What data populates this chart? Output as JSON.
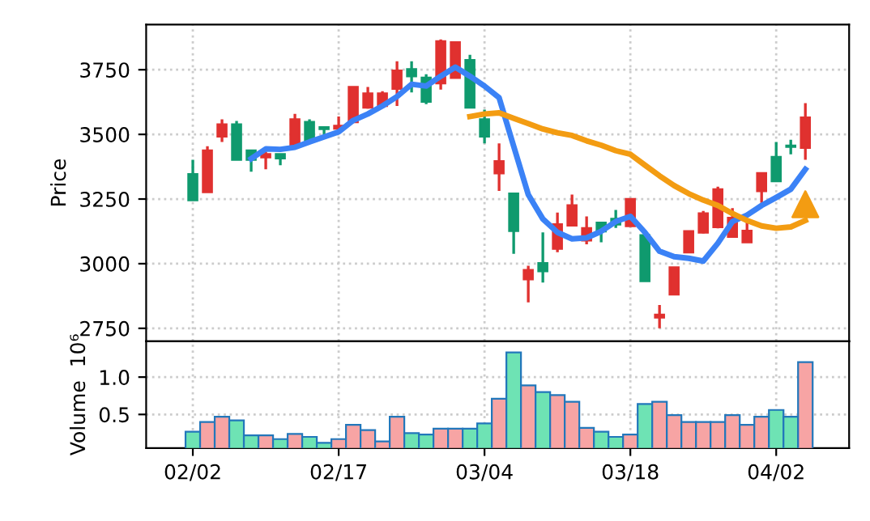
{
  "chart_data": [
    {
      "type": "candlestick",
      "ylabel": "Price",
      "categories": [
        null,
        null,
        null,
        null,
        null,
        null,
        null,
        null,
        null,
        null,
        null,
        null,
        null,
        null,
        null,
        null,
        null,
        null,
        null,
        null,
        null,
        null,
        null,
        null,
        null,
        null,
        null,
        null,
        null,
        null,
        null,
        null,
        null,
        null,
        null,
        null,
        null,
        null,
        null,
        null,
        null,
        null,
        null
      ],
      "ohlc": [
        [
          3346,
          3402,
          3245,
          3246
        ],
        [
          3277,
          3454,
          3277,
          3437
        ],
        [
          3492,
          3558,
          3471,
          3538
        ],
        [
          3538,
          3552,
          3402,
          3402
        ],
        [
          3437,
          3437,
          3356,
          3402
        ],
        [
          3412,
          3433,
          3365,
          3423
        ],
        [
          3423,
          3423,
          3381,
          3408
        ],
        [
          3458,
          3579,
          3458,
          3558
        ],
        [
          3548,
          3558,
          3475,
          3475
        ],
        [
          3527,
          3527,
          3492,
          3521
        ],
        [
          3523,
          3569,
          3517,
          3533
        ],
        [
          3548,
          3683,
          3548,
          3683
        ],
        [
          3604,
          3683,
          3600,
          3658
        ],
        [
          3610,
          3667,
          3604,
          3658
        ],
        [
          3677,
          3783,
          3610,
          3746
        ],
        [
          3752,
          3783,
          3662,
          3725
        ],
        [
          3719,
          3733,
          3617,
          3627
        ],
        [
          3698,
          3867,
          3673,
          3860
        ],
        [
          3719,
          3860,
          3719,
          3856
        ],
        [
          3787,
          3808,
          3604,
          3604
        ],
        [
          3558,
          3596,
          3465,
          3492
        ],
        [
          3350,
          3465,
          3281,
          3396
        ],
        [
          3271,
          3271,
          3038,
          3127
        ],
        [
          2940,
          2992,
          2850,
          2975
        ],
        [
          3002,
          3121,
          2927,
          2971
        ],
        [
          3058,
          3198,
          3044,
          3152
        ],
        [
          3148,
          3267,
          3148,
          3225
        ],
        [
          3090,
          3183,
          3075,
          3137
        ],
        [
          3158,
          3158,
          3083,
          3125
        ],
        [
          3173,
          3208,
          3138,
          3152
        ],
        [
          3146,
          3250,
          3146,
          3250
        ],
        [
          3110,
          3110,
          2933,
          2933
        ],
        [
          2792,
          2840,
          2750,
          2802
        ],
        [
          2881,
          2985,
          2881,
          2985
        ],
        [
          3044,
          3125,
          3044,
          3125
        ],
        [
          3121,
          3204,
          3117,
          3194
        ],
        [
          3142,
          3298,
          3137,
          3287
        ],
        [
          3104,
          3215,
          3100,
          3177
        ],
        [
          3083,
          3162,
          3083,
          3127
        ],
        [
          3281,
          3350,
          3235,
          3350
        ],
        [
          3412,
          3471,
          3319,
          3319
        ],
        [
          3456,
          3479,
          3423,
          3452
        ],
        [
          3448,
          3621,
          3402,
          3565
        ]
      ],
      "colors": [
        "#0f9a6e",
        "#e0312f",
        "#e0312f",
        "#0f9a6e",
        "#0f9a6e",
        "#e0312f",
        "#0f9a6e",
        "#e0312f",
        "#0f9a6e",
        "#0f9a6e",
        "#e0312f",
        "#e0312f",
        "#e0312f",
        "#e0312f",
        "#e0312f",
        "#0f9a6e",
        "#0f9a6e",
        "#e0312f",
        "#e0312f",
        "#0f9a6e",
        "#0f9a6e",
        "#e0312f",
        "#0f9a6e",
        "#e0312f",
        "#0f9a6e",
        "#e0312f",
        "#e0312f",
        "#e0312f",
        "#0f9a6e",
        "#0f9a6e",
        "#e0312f",
        "#0f9a6e",
        "#e0312f",
        "#e0312f",
        "#e0312f",
        "#e0312f",
        "#e0312f",
        "#e0312f",
        "#e0312f",
        "#e0312f",
        "#0f9a6e",
        "#0f9a6e",
        "#e0312f"
      ],
      "series": [
        {
          "type": "line",
          "color": "#3b82f6",
          "values": [
            null,
            null,
            null,
            null,
            3406,
            3444,
            3442,
            3450,
            3471,
            3490,
            3510,
            3554,
            3579,
            3610,
            3646,
            3694,
            3687,
            3725,
            3760,
            3725,
            3687,
            3642,
            3454,
            3267,
            3173,
            3121,
            3096,
            3100,
            3125,
            3163,
            3183,
            3121,
            3048,
            3027,
            3021,
            3010,
            3079,
            3163,
            3188,
            3225,
            3256,
            3288,
            3365
          ]
        },
        {
          "type": "line",
          "color": "#f39c12",
          "values": [
            null,
            null,
            null,
            null,
            null,
            null,
            null,
            null,
            null,
            null,
            null,
            null,
            null,
            null,
            null,
            null,
            null,
            null,
            null,
            3569,
            3579,
            3583,
            3562,
            3542,
            3521,
            3506,
            3496,
            3475,
            3458,
            3437,
            3423,
            3381,
            3340,
            3302,
            3271,
            3246,
            3225,
            3194,
            3167,
            3146,
            3137,
            3142,
            3167
          ]
        },
        {
          "type": "scatter",
          "color": "#f39c12",
          "marker": "triangle",
          "values": [
            null,
            null,
            null,
            null,
            null,
            null,
            null,
            null,
            null,
            null,
            null,
            null,
            null,
            null,
            null,
            null,
            null,
            null,
            null,
            null,
            null,
            null,
            null,
            null,
            null,
            null,
            null,
            null,
            null,
            null,
            null,
            null,
            null,
            null,
            null,
            null,
            null,
            null,
            null,
            null,
            null,
            null,
            3230
          ]
        }
      ],
      "ylim": [
        2700,
        3925
      ],
      "yticks": [
        2750,
        3000,
        3250,
        3500,
        3750
      ],
      "grid": true
    },
    {
      "type": "bar",
      "ylabel": "Volume  10⁶",
      "categories": [
        "02/02",
        null,
        null,
        null,
        null,
        null,
        null,
        null,
        null,
        null,
        "02/17",
        null,
        null,
        null,
        null,
        null,
        null,
        null,
        null,
        null,
        "03/04",
        null,
        null,
        null,
        null,
        null,
        null,
        null,
        null,
        null,
        "03/18",
        null,
        null,
        null,
        null,
        null,
        null,
        null,
        null,
        null,
        "04/02",
        null,
        null
      ],
      "values": [
        0.27,
        0.4,
        0.47,
        0.42,
        0.22,
        0.22,
        0.17,
        0.24,
        0.2,
        0.12,
        0.17,
        0.36,
        0.29,
        0.14,
        0.47,
        0.25,
        0.23,
        0.31,
        0.31,
        0.31,
        0.38,
        0.71,
        1.33,
        0.89,
        0.8,
        0.76,
        0.67,
        0.32,
        0.27,
        0.2,
        0.23,
        0.64,
        0.67,
        0.49,
        0.4,
        0.4,
        0.4,
        0.49,
        0.36,
        0.47,
        0.56,
        0.47,
        1.2
      ],
      "colors": [
        "#6ee3b4",
        "#f7a4a4",
        "#f7a4a4",
        "#6ee3b4",
        "#6ee3b4",
        "#f7a4a4",
        "#6ee3b4",
        "#f7a4a4",
        "#6ee3b4",
        "#6ee3b4",
        "#f7a4a4",
        "#f7a4a4",
        "#f7a4a4",
        "#f7a4a4",
        "#f7a4a4",
        "#6ee3b4",
        "#6ee3b4",
        "#f7a4a4",
        "#f7a4a4",
        "#6ee3b4",
        "#6ee3b4",
        "#f7a4a4",
        "#6ee3b4",
        "#f7a4a4",
        "#6ee3b4",
        "#f7a4a4",
        "#f7a4a4",
        "#f7a4a4",
        "#6ee3b4",
        "#6ee3b4",
        "#f7a4a4",
        "#6ee3b4",
        "#f7a4a4",
        "#f7a4a4",
        "#f7a4a4",
        "#f7a4a4",
        "#f7a4a4",
        "#f7a4a4",
        "#f7a4a4",
        "#f7a4a4",
        "#6ee3b4",
        "#6ee3b4",
        "#f7a4a4"
      ],
      "ylim": [
        0.05,
        1.48
      ],
      "yticks": [
        0.5,
        {
          "value": 1.0,
          "label": "1.0"
        }
      ],
      "grid": true
    }
  ]
}
